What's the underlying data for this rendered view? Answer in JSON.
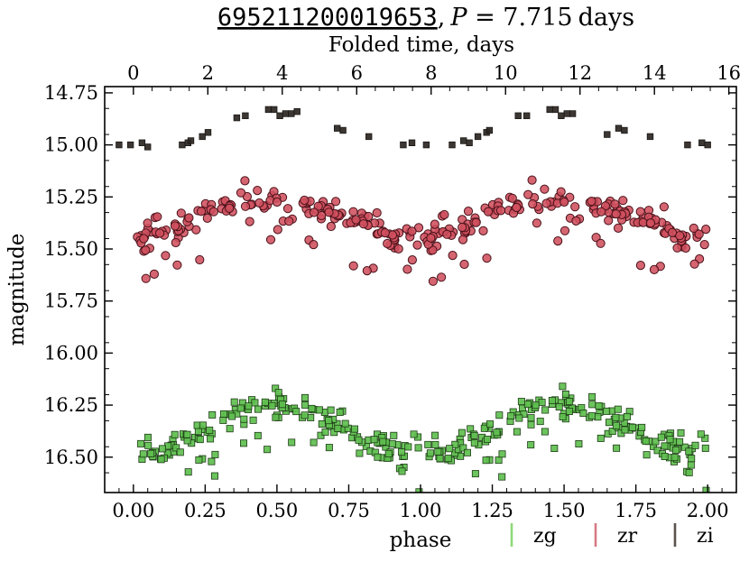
{
  "chart_data": {
    "type": "scatter",
    "title": {
      "object_id": "695211200019653",
      "separator": ",",
      "period_symbol": "P",
      "equals": " = ",
      "period_value": "7.715",
      "period_unit": "days"
    },
    "xlabel": "phase",
    "ylabel": "magnitude",
    "top_xlabel": "Folded time, days",
    "xlim": [
      -0.1,
      2.1
    ],
    "ylim": [
      16.67,
      14.72
    ],
    "y_inverted": true,
    "period_days": 7.715,
    "x_ticks": [
      0.0,
      0.25,
      0.5,
      0.75,
      1.0,
      1.25,
      1.5,
      1.75,
      2.0
    ],
    "x_tick_labels": [
      "0.00",
      "0.25",
      "0.50",
      "0.75",
      "1.00",
      "1.25",
      "1.50",
      "1.75",
      "2.00"
    ],
    "y_ticks": [
      14.75,
      15.0,
      15.25,
      15.5,
      15.75,
      16.0,
      16.25,
      16.5
    ],
    "y_tick_labels": [
      "14.75",
      "15.00",
      "15.25",
      "15.50",
      "15.75",
      "16.00",
      "16.25",
      "16.50"
    ],
    "top_x_ticks": [
      0,
      2,
      4,
      6,
      8,
      10,
      12,
      14,
      16
    ],
    "top_x_tick_labels": [
      "0",
      "2",
      "4",
      "6",
      "8",
      "10",
      "12",
      "14",
      "16"
    ],
    "legend_position": "below-right",
    "series": [
      {
        "name": "zg",
        "marker": "square",
        "color": "#5fbf4f",
        "edge": "#1e3d17",
        "legend_color": "#8fd87a",
        "base_mag": 16.37,
        "amplitude": 0.12,
        "peak_phase": 0.5,
        "scatter": 0.035,
        "n_points": 170,
        "seed": 11,
        "faint_fraction": 0.12,
        "faint_offset": 0.14
      },
      {
        "name": "zr",
        "marker": "circle",
        "color": "#d0505e",
        "edge": "#4a1219",
        "legend_color": "#d77a84",
        "base_mag": 15.35,
        "amplitude": 0.09,
        "peak_phase": 0.5,
        "scatter": 0.03,
        "n_points": 160,
        "seed": 23,
        "faint_fraction": 0.12,
        "faint_offset": 0.14
      },
      {
        "name": "zi",
        "marker": "square",
        "color": "#2b2622",
        "edge": "#1a1714",
        "legend_color": "#5a534c",
        "points": [
          [
            -0.05,
            15.0
          ],
          [
            -0.01,
            15.0
          ],
          [
            0.03,
            14.99
          ],
          [
            0.05,
            15.01
          ],
          [
            0.17,
            15.0
          ],
          [
            0.19,
            14.99
          ],
          [
            0.2,
            14.98
          ],
          [
            0.24,
            14.96
          ],
          [
            0.26,
            14.94
          ],
          [
            0.36,
            14.87
          ],
          [
            0.39,
            14.86
          ],
          [
            0.47,
            14.83
          ],
          [
            0.49,
            14.83
          ],
          [
            0.51,
            14.86
          ],
          [
            0.53,
            14.85
          ],
          [
            0.55,
            14.85
          ],
          [
            0.57,
            14.84
          ],
          [
            0.71,
            14.92
          ],
          [
            0.73,
            14.93
          ],
          [
            0.82,
            14.96
          ],
          [
            0.94,
            15.0
          ],
          [
            0.97,
            14.99
          ],
          [
            1.02,
            15.0
          ],
          [
            1.11,
            15.0
          ],
          [
            1.15,
            14.98
          ],
          [
            1.17,
            14.99
          ],
          [
            1.2,
            14.96
          ],
          [
            1.23,
            14.94
          ],
          [
            1.24,
            14.93
          ],
          [
            1.34,
            14.86
          ],
          [
            1.37,
            14.86
          ],
          [
            1.45,
            14.83
          ],
          [
            1.47,
            14.83
          ],
          [
            1.49,
            14.86
          ],
          [
            1.51,
            14.85
          ],
          [
            1.53,
            14.85
          ],
          [
            1.65,
            14.95
          ],
          [
            1.69,
            14.92
          ],
          [
            1.71,
            14.93
          ],
          [
            1.8,
            14.96
          ],
          [
            1.93,
            15.0
          ],
          [
            1.98,
            14.99
          ],
          [
            2.0,
            15.0
          ]
        ]
      }
    ]
  }
}
